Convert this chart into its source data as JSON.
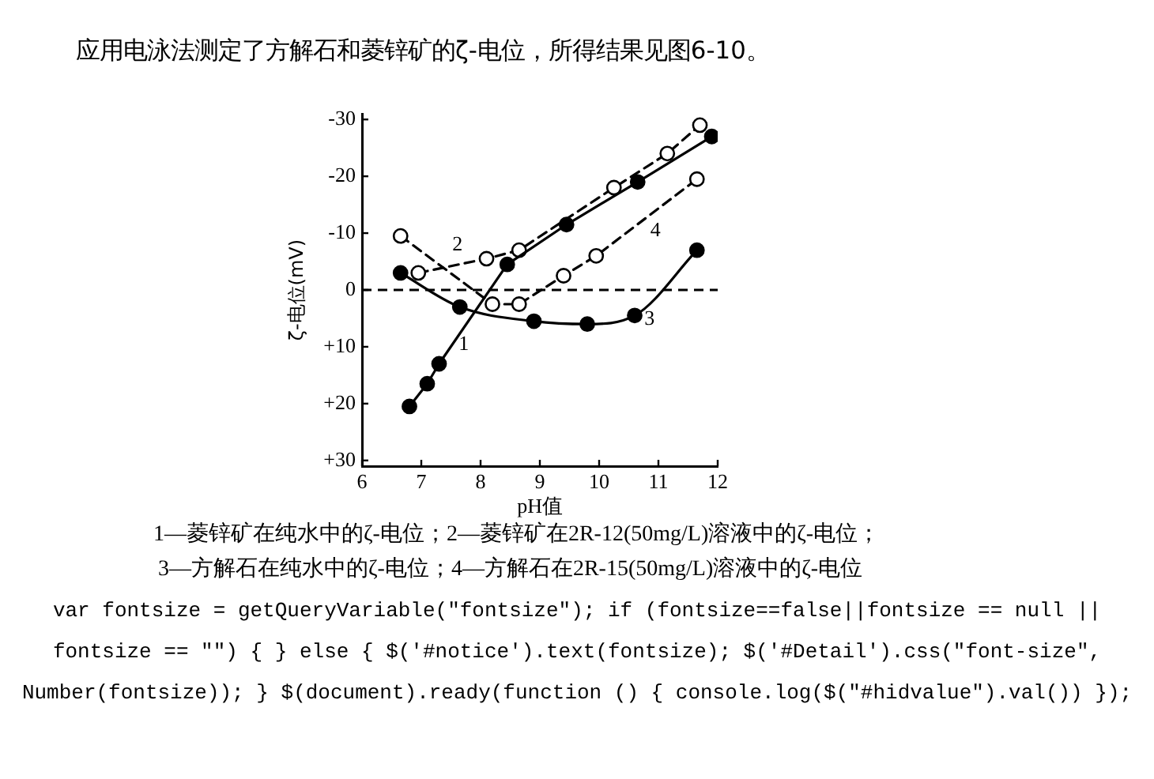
{
  "chart_data": {
    "type": "line",
    "title": "应用电泳法测定了方解石和菱锌矿的ζ-电位，所得结果见图6-10。",
    "xlabel": "pH值",
    "ylabel": "ζ-电位(mV)",
    "xlim": [
      6,
      12
    ],
    "xticks": [
      6,
      7,
      8,
      9,
      10,
      11,
      12
    ],
    "ylim": [
      31,
      -31
    ],
    "yticks": [
      -30,
      -20,
      -10,
      0,
      {
        "value": 10,
        "label": "+10"
      },
      {
        "value": 20,
        "label": "+20"
      },
      {
        "value": 30,
        "label": "+30"
      }
    ],
    "marker": "circle",
    "series": [
      {
        "name": "1",
        "color": "#000000",
        "line_style": "solid",
        "x": [
          6.8,
          7.1,
          7.3,
          8.45,
          9.45,
          10.65,
          11.9
        ],
        "values": [
          20.5,
          16.5,
          13,
          -4.5,
          -11.5,
          -19,
          -27
        ]
      },
      {
        "name": "2",
        "color": "#000000",
        "line_style": "dashed",
        "x": [
          6.95,
          8.1,
          8.65,
          10.25,
          11.15,
          11.7
        ],
        "values": [
          -3,
          -5.5,
          -7,
          -18,
          -24,
          -29
        ]
      },
      {
        "name": "3",
        "color": "#000000",
        "line_style": "solid",
        "x": [
          6.65,
          7.65,
          8.9,
          9.8,
          10.6,
          11.65
        ],
        "values": [
          -3,
          3,
          5.5,
          6,
          4.5,
          -7
        ]
      },
      {
        "name": "4",
        "color": "#000000",
        "line_style": "dashed",
        "x": [
          6.65,
          8.2,
          8.65,
          9.4,
          9.95,
          11.65
        ],
        "values": [
          -9.5,
          2.5,
          2.5,
          -2.5,
          -6,
          -19.5
        ]
      }
    ],
    "ref_lines": [
      {
        "axis": "y",
        "value": 0,
        "line_style": "dashed"
      }
    ],
    "annotations": [
      "1—菱锌矿在纯水中的ζ-电位；2—菱锌矿在2R-12(50mg/L)溶液中的ζ-电位；",
      "3—方解石在纯水中的ζ-电位；4—方解石在2R-15(50mg/L)溶液中的ζ-电位",
      "var fontsize = getQueryVariable(\"fontsize\"); if (fontsize==false||fontsize == null || fontsize == \"\") { } else { $('#notice').text(fontsize); $('#Detail').css(\"font-size\", Number(fontsize)); } $(document).ready(function () { console.log($(\"#hidvalue\").val()) });"
    ]
  }
}
